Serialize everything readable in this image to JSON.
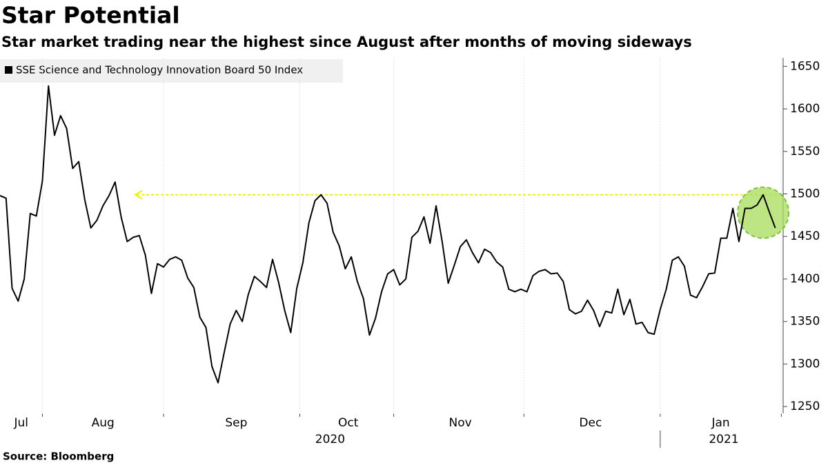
{
  "chart_data": {
    "type": "line",
    "title": "Star Potential",
    "subtitle": "Star market trading near the highest since August after months of moving sideways",
    "source": "Source: Bloomberg",
    "series": [
      {
        "name": "SSE Science and Technology Innovation Board 50 Index",
        "color": "#000000",
        "values": [
          1498,
          1495,
          1389,
          1374,
          1400,
          1477,
          1474,
          1515,
          1627,
          1569,
          1592,
          1577,
          1530,
          1538,
          1493,
          1460,
          1469,
          1486,
          1498,
          1514,
          1473,
          1444,
          1449,
          1451,
          1428,
          1383,
          1418,
          1414,
          1423,
          1426,
          1422,
          1401,
          1390,
          1355,
          1343,
          1297,
          1278,
          1313,
          1347,
          1363,
          1350,
          1382,
          1403,
          1397,
          1390,
          1423,
          1396,
          1363,
          1337,
          1389,
          1419,
          1466,
          1492,
          1499,
          1489,
          1455,
          1439,
          1412,
          1426,
          1397,
          1377,
          1334,
          1354,
          1385,
          1406,
          1411,
          1393,
          1400,
          1449,
          1456,
          1473,
          1442,
          1486,
          1444,
          1395,
          1416,
          1438,
          1446,
          1431,
          1419,
          1435,
          1431,
          1420,
          1414,
          1388,
          1385,
          1388,
          1385,
          1404,
          1409,
          1411,
          1406,
          1407,
          1397,
          1364,
          1359,
          1362,
          1375,
          1363,
          1344,
          1362,
          1360,
          1388,
          1358,
          1376,
          1347,
          1349,
          1337,
          1335,
          1364,
          1388,
          1422,
          1426,
          1415,
          1381,
          1378,
          1391,
          1406,
          1407,
          1448,
          1448,
          1483,
          1444,
          1483,
          1483,
          1487,
          1499,
          1479,
          1460
        ]
      }
    ],
    "reference_line": 1499,
    "ylim": [
      1242,
      1660
    ],
    "yticks": [
      1250,
      1300,
      1350,
      1400,
      1450,
      1500,
      1550,
      1600,
      1650
    ],
    "xlim": [
      0,
      129.3
    ],
    "xticks": [
      {
        "value": 3.5,
        "label": "Jul"
      },
      {
        "value": 17,
        "label": "Aug"
      },
      {
        "value": 39,
        "label": "Sep"
      },
      {
        "value": 57.5,
        "label": "Oct"
      },
      {
        "value": 76,
        "label": "Nov"
      },
      {
        "value": 97.5,
        "label": "Dec"
      },
      {
        "value": 119,
        "label": "Jan"
      }
    ],
    "xgrid": [
      7,
      27,
      49.5,
      65,
      86.5,
      109,
      129
    ],
    "years": [
      {
        "value": 54.5,
        "label": "2020"
      },
      {
        "value": 119.5,
        "label": "2021"
      }
    ],
    "year_break": 109
  }
}
